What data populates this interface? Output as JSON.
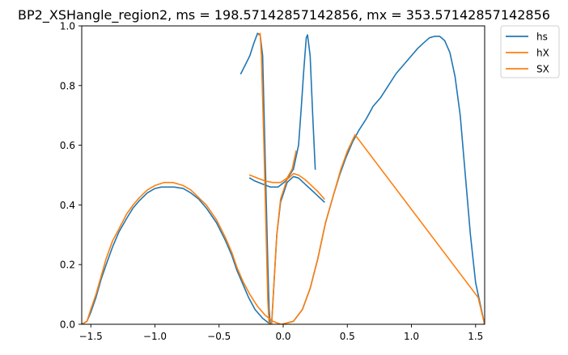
{
  "chart_data": {
    "type": "line",
    "title": "BP2_XSHangle_region2, ms = 198.57142857142856, mx = 353.57142857142856",
    "xlabel": "",
    "ylabel": "",
    "xlim": [
      -1.5708,
      1.5708
    ],
    "ylim": [
      0,
      1
    ],
    "xticks": [
      -1.5,
      -1.0,
      -0.5,
      0.0,
      0.5,
      1.0,
      1.5
    ],
    "xtick_labels": [
      "−1.5",
      "−1.0",
      "−0.5",
      "0.0",
      "0.5",
      "1.0",
      "1.5"
    ],
    "yticks": [
      0.0,
      0.2,
      0.4,
      0.6,
      0.8,
      1.0
    ],
    "ytick_labels": [
      "0.0",
      "0.2",
      "0.4",
      "0.6",
      "0.8",
      "1.0"
    ],
    "grid": false,
    "legend_position": "outside-top-right",
    "legend": [
      "hs",
      "hX",
      "SX"
    ],
    "colors": {
      "blue": "#1f77b4",
      "orange": "#ff7f0e"
    },
    "series": [
      {
        "name": "hs",
        "color": "#1f77b4",
        "segments": [
          [
            [
              -1.57,
              0.0
            ],
            [
              -1.53,
              0.01
            ],
            [
              -1.5,
              0.04
            ],
            [
              -1.46,
              0.09
            ],
            [
              -1.42,
              0.15
            ],
            [
              -1.38,
              0.2
            ],
            [
              -1.33,
              0.26
            ],
            [
              -1.28,
              0.31
            ],
            [
              -1.22,
              0.355
            ],
            [
              -1.17,
              0.39
            ],
            [
              -1.12,
              0.415
            ],
            [
              -1.06,
              0.44
            ],
            [
              -1.0,
              0.455
            ],
            [
              -0.95,
              0.46
            ],
            [
              -0.85,
              0.46
            ],
            [
              -0.78,
              0.455
            ],
            [
              -0.72,
              0.44
            ],
            [
              -0.66,
              0.42
            ],
            [
              -0.6,
              0.39
            ],
            [
              -0.52,
              0.34
            ],
            [
              -0.45,
              0.28
            ],
            [
              -0.4,
              0.23
            ],
            [
              -0.36,
              0.18
            ],
            [
              -0.31,
              0.13
            ],
            [
              -0.27,
              0.09
            ],
            [
              -0.22,
              0.05
            ],
            [
              -0.16,
              0.02
            ],
            [
              -0.1,
              0.0
            ]
          ],
          [
            [
              -0.33,
              0.84
            ],
            [
              -0.3,
              0.865
            ],
            [
              -0.26,
              0.9
            ],
            [
              -0.23,
              0.94
            ],
            [
              -0.2,
              0.975
            ],
            [
              -0.18,
              0.97
            ],
            [
              -0.16,
              0.9
            ],
            [
              -0.14,
              0.55
            ],
            [
              -0.12,
              0.2
            ],
            [
              -0.11,
              0.05
            ],
            [
              -0.1,
              0.0
            ]
          ],
          [
            [
              -0.26,
              0.49
            ],
            [
              -0.22,
              0.48
            ],
            [
              -0.16,
              0.47
            ],
            [
              -0.1,
              0.46
            ],
            [
              -0.04,
              0.46
            ],
            [
              0.02,
              0.48
            ],
            [
              0.08,
              0.52
            ],
            [
              0.12,
              0.6
            ],
            [
              0.14,
              0.72
            ],
            [
              0.16,
              0.85
            ],
            [
              0.18,
              0.96
            ],
            [
              0.19,
              0.97
            ],
            [
              0.21,
              0.9
            ],
            [
              0.23,
              0.7
            ],
            [
              0.25,
              0.52
            ]
          ],
          [
            [
              -0.09,
              0.0
            ],
            [
              -0.07,
              0.15
            ],
            [
              -0.05,
              0.3
            ],
            [
              -0.02,
              0.41
            ],
            [
              0.03,
              0.475
            ],
            [
              0.08,
              0.495
            ],
            [
              0.12,
              0.49
            ],
            [
              0.17,
              0.47
            ],
            [
              0.22,
              0.45
            ],
            [
              0.27,
              0.43
            ],
            [
              0.32,
              0.41
            ]
          ],
          [
            [
              -0.01,
              0.0
            ],
            [
              0.08,
              0.01
            ],
            [
              0.15,
              0.05
            ],
            [
              0.21,
              0.12
            ],
            [
              0.27,
              0.22
            ],
            [
              0.33,
              0.34
            ],
            [
              0.39,
              0.43
            ],
            [
              0.44,
              0.5
            ],
            [
              0.49,
              0.56
            ],
            [
              0.54,
              0.61
            ],
            [
              0.59,
              0.65
            ],
            [
              0.65,
              0.69
            ],
            [
              0.7,
              0.73
            ],
            [
              0.76,
              0.76
            ],
            [
              0.82,
              0.8
            ],
            [
              0.88,
              0.84
            ],
            [
              0.94,
              0.87
            ],
            [
              1.0,
              0.9
            ],
            [
              1.05,
              0.925
            ],
            [
              1.1,
              0.945
            ],
            [
              1.14,
              0.96
            ],
            [
              1.18,
              0.965
            ],
            [
              1.22,
              0.965
            ],
            [
              1.26,
              0.95
            ],
            [
              1.3,
              0.91
            ],
            [
              1.34,
              0.83
            ],
            [
              1.38,
              0.7
            ],
            [
              1.42,
              0.5
            ],
            [
              1.46,
              0.3
            ],
            [
              1.5,
              0.14
            ],
            [
              1.54,
              0.06
            ],
            [
              1.57,
              0.0
            ]
          ]
        ]
      },
      {
        "name": "hX",
        "color": "#ff7f0e",
        "segments": [
          [
            [
              -1.57,
              0.0
            ],
            [
              -1.53,
              0.01
            ],
            [
              -1.5,
              0.05
            ],
            [
              -1.46,
              0.1
            ],
            [
              -1.42,
              0.16
            ],
            [
              -1.38,
              0.22
            ],
            [
              -1.33,
              0.28
            ],
            [
              -1.28,
              0.32
            ],
            [
              -1.22,
              0.37
            ],
            [
              -1.17,
              0.4
            ],
            [
              -1.12,
              0.425
            ],
            [
              -1.06,
              0.45
            ],
            [
              -1.0,
              0.465
            ],
            [
              -0.93,
              0.475
            ],
            [
              -0.86,
              0.475
            ],
            [
              -0.78,
              0.465
            ],
            [
              -0.72,
              0.45
            ],
            [
              -0.66,
              0.425
            ],
            [
              -0.6,
              0.4
            ],
            [
              -0.52,
              0.35
            ],
            [
              -0.45,
              0.29
            ],
            [
              -0.4,
              0.24
            ],
            [
              -0.36,
              0.19
            ],
            [
              -0.31,
              0.14
            ],
            [
              -0.26,
              0.1
            ],
            [
              -0.2,
              0.06
            ],
            [
              -0.14,
              0.03
            ],
            [
              -0.08,
              0.01
            ],
            [
              -0.02,
              0.0
            ]
          ],
          [
            [
              -0.19,
              0.97
            ],
            [
              -0.18,
              0.975
            ],
            [
              -0.17,
              0.9
            ],
            [
              -0.15,
              0.6
            ],
            [
              -0.13,
              0.25
            ],
            [
              -0.12,
              0.08
            ],
            [
              -0.11,
              0.0
            ]
          ],
          [
            [
              -0.26,
              0.5
            ],
            [
              -0.2,
              0.49
            ],
            [
              -0.14,
              0.48
            ],
            [
              -0.08,
              0.475
            ],
            [
              -0.02,
              0.475
            ],
            [
              0.03,
              0.49
            ],
            [
              0.07,
              0.52
            ],
            [
              0.1,
              0.58
            ]
          ]
        ]
      },
      {
        "name": "SX",
        "color": "#ff7f0e",
        "segments": [
          [
            [
              -0.09,
              0.0
            ],
            [
              -0.07,
              0.15
            ],
            [
              -0.05,
              0.3
            ],
            [
              -0.02,
              0.42
            ],
            [
              0.03,
              0.485
            ],
            [
              0.08,
              0.505
            ],
            [
              0.12,
              0.5
            ],
            [
              0.17,
              0.485
            ],
            [
              0.22,
              0.465
            ],
            [
              0.27,
              0.445
            ],
            [
              0.32,
              0.42
            ]
          ],
          [
            [
              -0.01,
              0.0
            ],
            [
              0.08,
              0.01
            ],
            [
              0.15,
              0.05
            ],
            [
              0.21,
              0.12
            ],
            [
              0.27,
              0.22
            ],
            [
              0.33,
              0.34
            ],
            [
              0.39,
              0.43
            ],
            [
              0.45,
              0.52
            ],
            [
              0.5,
              0.58
            ],
            [
              0.56,
              0.635
            ],
            [
              1.52,
              0.09
            ],
            [
              1.57,
              0.0
            ]
          ]
        ]
      }
    ]
  }
}
